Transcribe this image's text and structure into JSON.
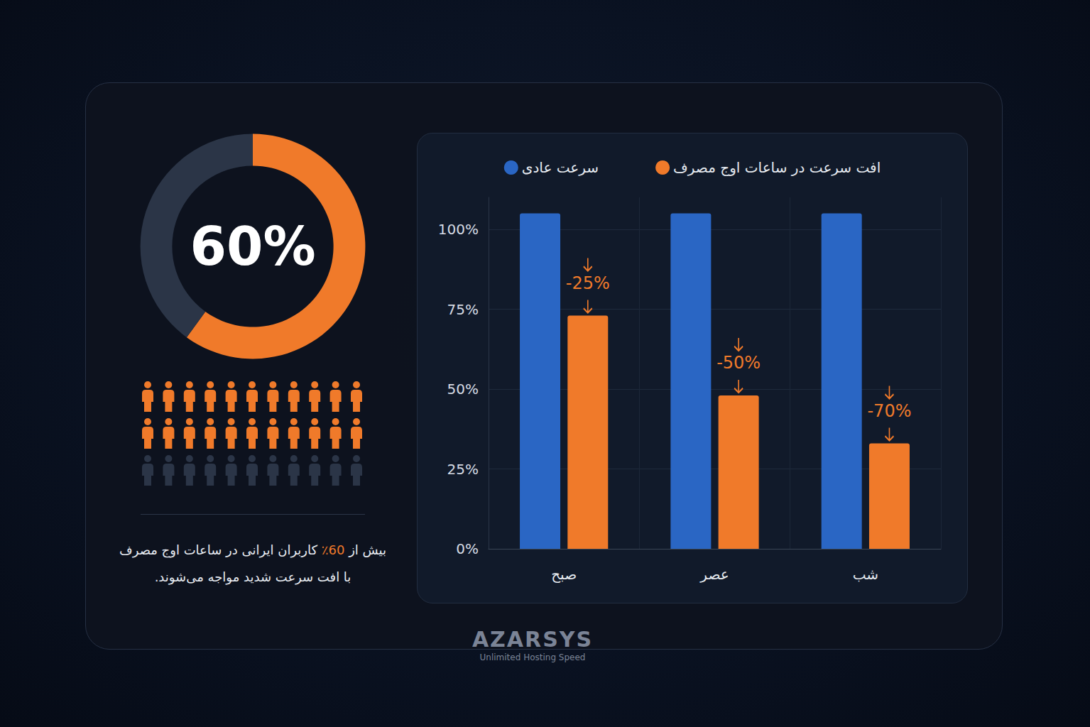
{
  "chart_data": [
    {
      "type": "pie",
      "values": [
        60,
        40
      ],
      "colors": [
        "#f07a2a",
        "#2b3547"
      ],
      "center_label": "60%"
    },
    {
      "type": "bar",
      "categories": [
        "صبح",
        "عصر",
        "شب"
      ],
      "series": [
        {
          "name": "سرعت عادی",
          "color": "#2a66c4",
          "values": [
            105,
            105,
            105
          ]
        },
        {
          "name": "افت سرعت در ساعات اوج مصرف",
          "color": "#f07a2a",
          "values": [
            73,
            48,
            33
          ],
          "annotations": [
            "-25%",
            "-50%",
            "-70%"
          ]
        }
      ],
      "ylim": [
        0,
        110
      ],
      "yticks": [
        {
          "value": 0,
          "label": "0%"
        },
        {
          "value": 25,
          "label": "25%"
        },
        {
          "value": 50,
          "label": "50%"
        },
        {
          "value": 75,
          "label": "75%"
        },
        {
          "value": 100,
          "label": "100%"
        }
      ],
      "grid": true,
      "legend": "top"
    }
  ],
  "people": {
    "highlighted": 22,
    "total": 33,
    "colors": [
      "#f07a2a",
      "#2b3547"
    ]
  },
  "caption": "بیش از 60٪ کاربران ایرانی در ساعات اوج مصرف با افت سرعت شدید مواجه می‌شوند.",
  "watermark": {
    "title": "AZARSYS",
    "subtitle": "Unlimited Hosting Speed"
  }
}
